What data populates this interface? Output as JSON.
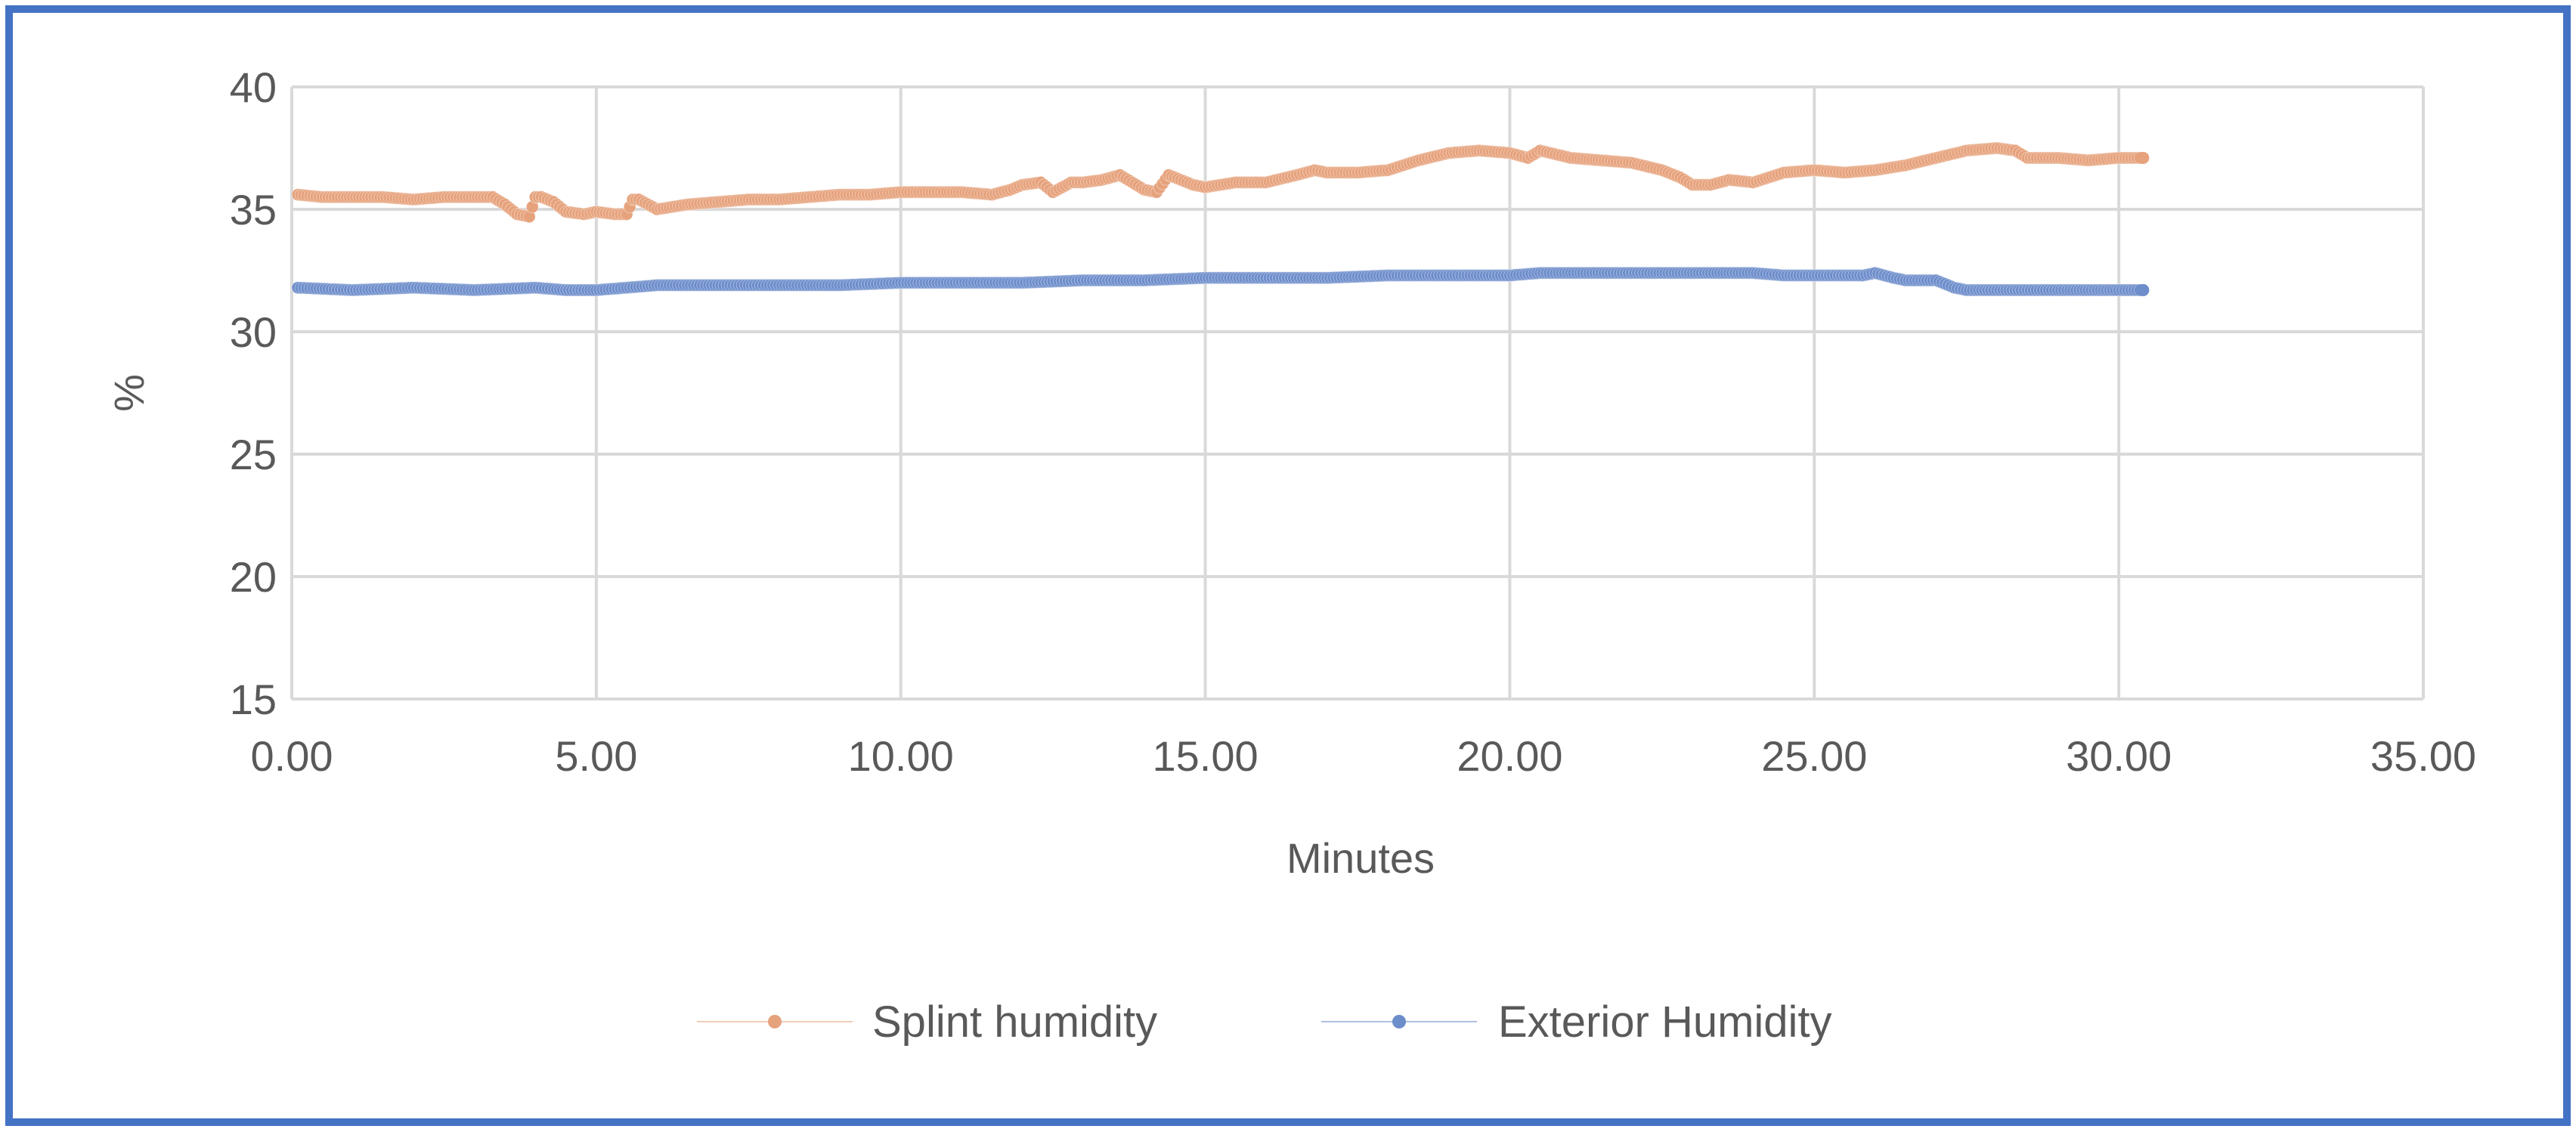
{
  "chart_data": {
    "type": "scatter",
    "title": "",
    "xlabel": "Minutes",
    "ylabel": "%",
    "xlim": [
      0,
      35
    ],
    "ylim": [
      15,
      40
    ],
    "x_ticks": [
      "0.00",
      "5.00",
      "10.00",
      "15.00",
      "20.00",
      "25.00",
      "30.00",
      "35.00"
    ],
    "y_ticks": [
      "15",
      "20",
      "25",
      "30",
      "35",
      "40"
    ],
    "grid": true,
    "legend_position": "bottom",
    "series": [
      {
        "name": "Splint humidity",
        "color": "#e6a27c",
        "x": [
          0.1,
          0.5,
          1.0,
          1.5,
          2.0,
          2.5,
          3.0,
          3.3,
          3.5,
          3.7,
          3.9,
          4.0,
          4.1,
          4.3,
          4.5,
          4.8,
          5.0,
          5.3,
          5.5,
          5.6,
          5.7,
          6.0,
          6.5,
          7.0,
          7.5,
          8.0,
          8.5,
          9.0,
          9.5,
          10.0,
          10.5,
          11.0,
          11.5,
          11.8,
          12.0,
          12.3,
          12.5,
          12.8,
          13.0,
          13.3,
          13.6,
          13.8,
          14.0,
          14.2,
          14.4,
          14.5,
          14.8,
          15.0,
          15.5,
          16.0,
          16.5,
          16.8,
          17.0,
          17.5,
          18.0,
          18.5,
          19.0,
          19.5,
          20.0,
          20.3,
          20.5,
          21.0,
          21.5,
          22.0,
          22.5,
          22.8,
          23.0,
          23.3,
          23.6,
          24.0,
          24.5,
          25.0,
          25.5,
          26.0,
          26.5,
          27.0,
          27.5,
          28.0,
          28.3,
          28.5,
          29.0,
          29.5,
          30.0,
          30.4
        ],
        "y": [
          35.6,
          35.5,
          35.5,
          35.5,
          35.4,
          35.5,
          35.5,
          35.5,
          35.2,
          34.8,
          34.7,
          35.5,
          35.5,
          35.3,
          34.9,
          34.8,
          34.9,
          34.8,
          34.8,
          35.4,
          35.4,
          35.0,
          35.2,
          35.3,
          35.4,
          35.4,
          35.5,
          35.6,
          35.6,
          35.7,
          35.7,
          35.7,
          35.6,
          35.8,
          36.0,
          36.1,
          35.7,
          36.1,
          36.1,
          36.2,
          36.4,
          36.1,
          35.8,
          35.7,
          36.4,
          36.3,
          36.0,
          35.9,
          36.1,
          36.1,
          36.4,
          36.6,
          36.5,
          36.5,
          36.6,
          37.0,
          37.3,
          37.4,
          37.3,
          37.1,
          37.4,
          37.1,
          37.0,
          36.9,
          36.6,
          36.3,
          36.0,
          36.0,
          36.2,
          36.1,
          36.5,
          36.6,
          36.5,
          36.6,
          36.8,
          37.1,
          37.4,
          37.5,
          37.4,
          37.1,
          37.1,
          37.0,
          37.1,
          37.1
        ]
      },
      {
        "name": "Exterior Humidity",
        "color": "#6d8dcb",
        "x": [
          0.1,
          1.0,
          2.0,
          3.0,
          4.0,
          4.5,
          5.0,
          5.5,
          6.0,
          7.0,
          8.0,
          9.0,
          10.0,
          11.0,
          12.0,
          13.0,
          14.0,
          15.0,
          16.0,
          17.0,
          18.0,
          19.0,
          20.0,
          20.5,
          21.0,
          21.5,
          22.0,
          23.0,
          24.0,
          24.5,
          25.0,
          25.5,
          25.8,
          26.0,
          26.3,
          26.5,
          27.0,
          27.3,
          27.5,
          28.0,
          29.0,
          30.0,
          30.4
        ],
        "y": [
          31.8,
          31.7,
          31.8,
          31.7,
          31.8,
          31.7,
          31.7,
          31.8,
          31.9,
          31.9,
          31.9,
          31.9,
          32.0,
          32.0,
          32.0,
          32.1,
          32.1,
          32.2,
          32.2,
          32.2,
          32.3,
          32.3,
          32.3,
          32.4,
          32.4,
          32.4,
          32.4,
          32.4,
          32.4,
          32.3,
          32.3,
          32.3,
          32.3,
          32.4,
          32.2,
          32.1,
          32.1,
          31.8,
          31.7,
          31.7,
          31.7,
          31.7,
          31.7
        ]
      }
    ]
  }
}
